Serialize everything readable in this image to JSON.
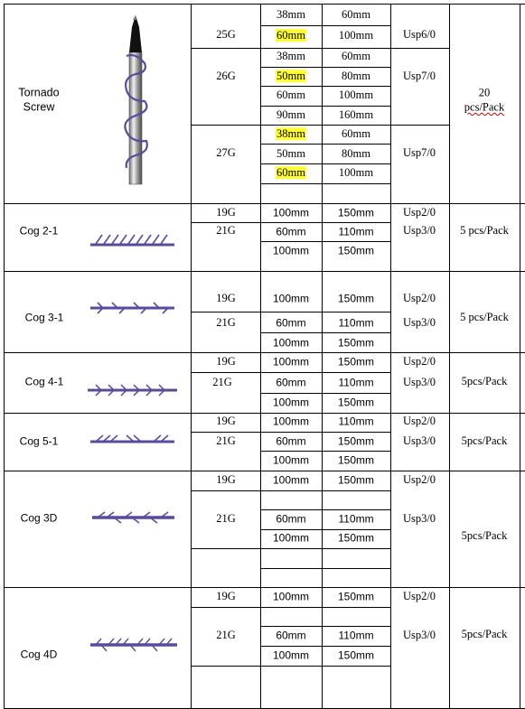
{
  "rows": [
    {
      "name": "Tornado Screw",
      "name_lines": [
        "Tornado",
        "Screw"
      ],
      "pack_lines": [
        "20",
        "pcs/Pack"
      ],
      "gauges": [
        "25G",
        "26G",
        "27G"
      ],
      "lengths": [
        [
          "38mm",
          "60mm"
        ],
        [
          "60mm",
          "100mm"
        ],
        [
          "38mm",
          "60mm"
        ],
        [
          "50mm",
          "80mm"
        ],
        [
          "60mm",
          "100mm"
        ],
        [
          "90mm",
          "160mm"
        ],
        [
          "38mm",
          "60mm"
        ],
        [
          "50mm",
          "80mm"
        ],
        [
          "60mm",
          "100mm"
        ]
      ],
      "usp": [
        "Usp6/0",
        "Usp7/0",
        "Usp7/0"
      ]
    },
    {
      "name": "Cog 2-1",
      "pack": "5 pcs/Pack",
      "gauges": [
        "19G",
        "21G"
      ],
      "lengths": [
        [
          "100mm",
          "150mm"
        ],
        [
          "60mm",
          "110mm"
        ],
        [
          "100mm",
          "150mm"
        ]
      ],
      "usp": [
        "Usp2/0",
        "Usp3/0"
      ]
    },
    {
      "name": "Cog 3-1",
      "pack": "5 pcs/Pack",
      "gauges": [
        "19G",
        "21G"
      ],
      "lengths": [
        [
          "100mm",
          "150mm"
        ],
        [
          "60mm",
          "110mm"
        ],
        [
          "100mm",
          "150mm"
        ]
      ],
      "usp": [
        "Usp2/0",
        "Usp3/0"
      ]
    },
    {
      "name": "Cog 4-1",
      "pack": "5pcs/Pack",
      "gauges": [
        "19G",
        "21G"
      ],
      "lengths": [
        [
          "100mm",
          "150mm"
        ],
        [
          "60mm",
          "110mm"
        ],
        [
          "100mm",
          "150mm"
        ]
      ],
      "usp": [
        "Usp2/0",
        "Usp3/0"
      ]
    },
    {
      "name": "Cog 5-1",
      "pack": "5pcs/Pack",
      "gauges": [
        "19G",
        "21G"
      ],
      "lengths": [
        [
          "100mm",
          "110mm"
        ],
        [
          "60mm",
          "150mm"
        ],
        [
          "100mm",
          "150mm"
        ]
      ],
      "usp": [
        "Usp2/0",
        "Usp3/0"
      ]
    },
    {
      "name": "Cog 3D",
      "pack": "5pcs/Pack",
      "gauges": [
        "19G",
        "21G"
      ],
      "lengths": [
        [
          "100mm",
          "150mm"
        ],
        [
          "60mm",
          "110mm"
        ],
        [
          "100mm",
          "150mm"
        ]
      ],
      "usp": [
        "Usp2/0",
        "Usp3/0"
      ]
    },
    {
      "name": "Cog 4D",
      "pack": "5pcs/Pack",
      "gauges": [
        "19G",
        "21G"
      ],
      "lengths": [
        [
          "100mm",
          "150mm"
        ],
        [
          "60mm",
          "110mm"
        ],
        [
          "100mm",
          "150mm"
        ]
      ],
      "usp": [
        "Usp2/0",
        "Usp3/0"
      ]
    }
  ],
  "colors": {
    "thread": "#5a4a9e",
    "highlight": "#ffff33",
    "grid": "#000000"
  }
}
